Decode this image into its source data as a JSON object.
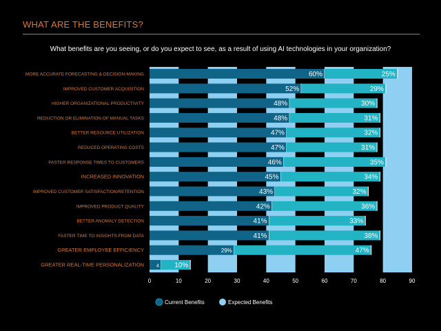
{
  "title": "WHAT ARE THE BENEFITS?",
  "subtitle": "What benefits are you seeing, or do you expect to see, as a result of using AI technologies in your organization?",
  "colors": {
    "current": "#0f6487",
    "expected": "#22b3c4",
    "stripe": "#8fd0f2",
    "label": "#d27a3c"
  },
  "chart_data": {
    "type": "bar",
    "orientation": "horizontal",
    "stacked": true,
    "categories": [
      "MORE ACCURATE FORECASTING & DECISION-MAKING",
      "IMPROVED CUSTOMER ACQUISITION",
      "HIGHER ORGANIZATIONAL PRODUCTIVITY",
      "REDUCTION OR ELIMINATION OF MANUAL TASKS",
      "BETTER RESOURCE UTILIZATION",
      "REDUCED OPERATING COSTS",
      "FASTER RESPONSE TIMES TO CUSTOMERS",
      "INCREASED INNOVATION",
      "IMPROVED CUSTOMER SATISFACTION/RETENTION",
      "IMPROVED PRODUCT QUALITY",
      "BETTER ANOMALY DETECTION",
      "FASTER TIME TO INSIGHTS FROM DATA",
      "GREATER EMPLOYEE EFFICIENCY",
      "GREATER REAL-TIME PERSONALIZATION"
    ],
    "series": [
      {
        "name": "Current Benefits",
        "values": [
          60,
          52,
          48,
          48,
          47,
          47,
          46,
          45,
          43,
          42,
          41,
          41,
          29,
          4
        ],
        "labels": [
          "60%",
          "52%",
          "48%",
          "48%",
          "47%",
          "47%",
          "46%",
          "45%",
          "43%",
          "42%",
          "41%",
          "41%",
          "29%",
          "4"
        ]
      },
      {
        "name": "Expected Benefits",
        "values": [
          25,
          29,
          30,
          31,
          32,
          31,
          35,
          34,
          32,
          36,
          33,
          38,
          47,
          10
        ],
        "labels": [
          "25%",
          "29%",
          "30%",
          "31%",
          "32%",
          "31%",
          "35%",
          "34%",
          "32%",
          "36%",
          "33%",
          "38%",
          "47%",
          "10%"
        ]
      }
    ],
    "xlim": [
      0,
      90
    ],
    "xticks": [
      "0",
      "10",
      "20",
      "30",
      "40",
      "50",
      "60",
      "70",
      "80",
      "90"
    ],
    "legend": "bottom",
    "grid": "alternating vertical bands"
  }
}
